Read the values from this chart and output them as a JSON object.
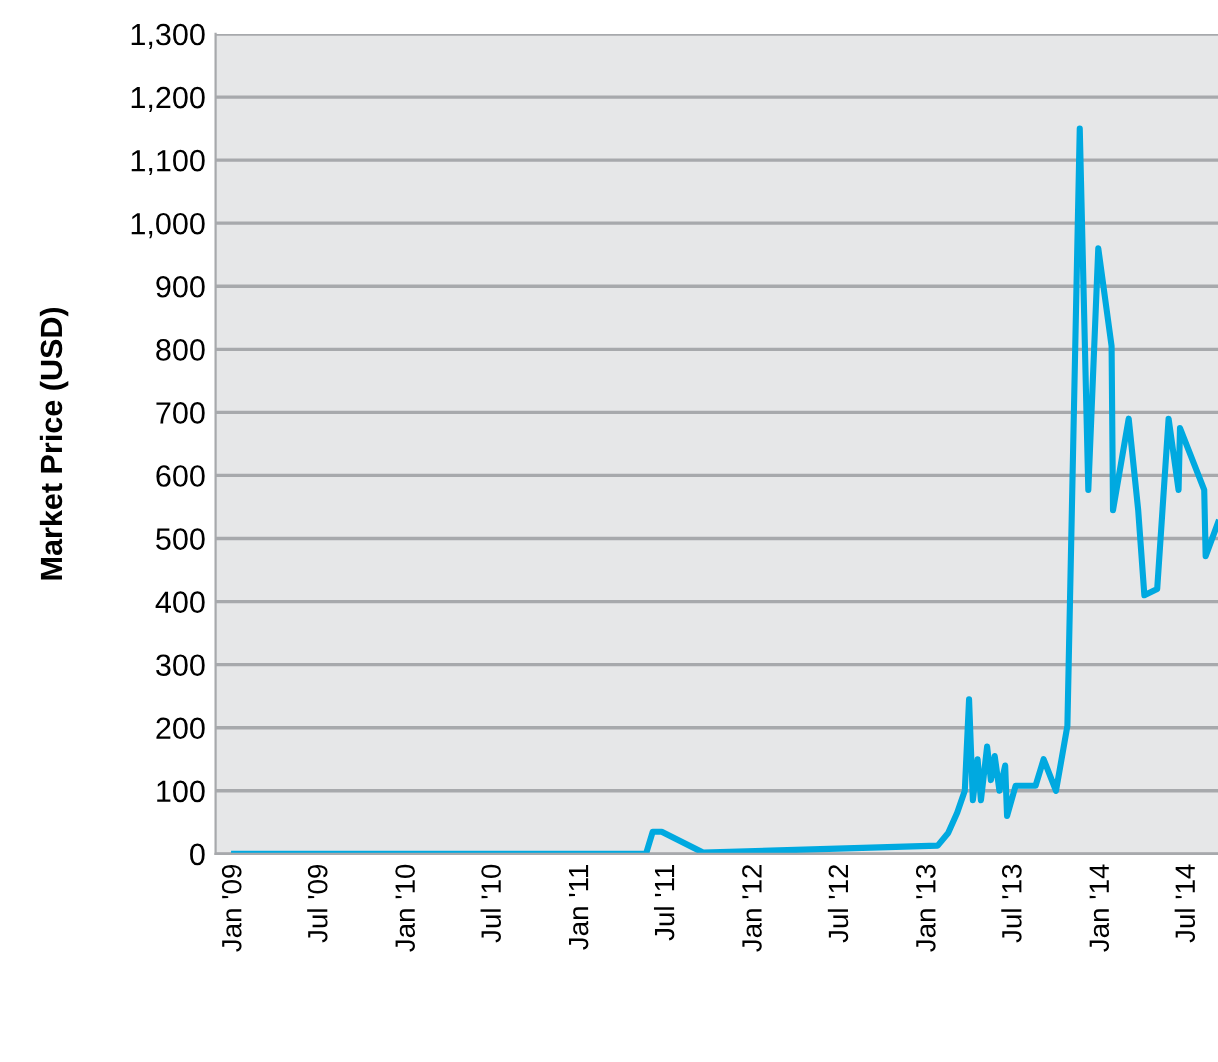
{
  "chart_data": {
    "type": "line",
    "ylabel": "Market Price (USD)",
    "x": [
      "2009-01-01",
      "2011-05-18",
      "2011-06-01",
      "2011-06-20",
      "2011-09-15",
      "2013-01-21",
      "2013-02-12",
      "2013-03-03",
      "2013-03-19",
      "2013-03-28",
      "2013-04-05",
      "2013-04-15",
      "2013-04-22",
      "2013-05-05",
      "2013-05-13",
      "2013-05-21",
      "2013-05-31",
      "2013-06-12",
      "2013-06-16",
      "2013-07-04",
      "2013-08-15",
      "2013-09-01",
      "2013-09-27",
      "2013-10-21",
      "2013-11-16",
      "2013-12-04",
      "2013-12-25",
      "2014-01-22",
      "2014-01-25",
      "2014-02-27",
      "2014-03-19",
      "2014-04-01",
      "2014-04-28",
      "2014-05-22",
      "2014-06-12",
      "2014-06-15",
      "2014-08-05",
      "2014-08-08",
      "2014-09-03"
    ],
    "series": [
      {
        "color": "#00a9e0",
        "values": [
          0,
          0,
          35,
          35,
          2,
          13,
          33,
          65,
          100,
          245,
          85,
          150,
          85,
          170,
          117,
          155,
          100,
          140,
          60,
          108,
          108,
          150,
          100,
          203,
          1150,
          577,
          960,
          805,
          545,
          690,
          545,
          410,
          420,
          690,
          577,
          675,
          577,
          472,
          525
        ]
      }
    ],
    "xlim": [
      "2008-11-23",
      "2014-09-03"
    ],
    "xticks": [
      {
        "value": "2009-01-01",
        "label": "Jan '09"
      },
      {
        "value": "2009-07-01",
        "label": "Jul '09"
      },
      {
        "value": "2010-01-01",
        "label": "Jan '10"
      },
      {
        "value": "2010-07-01",
        "label": "Jul '10"
      },
      {
        "value": "2011-01-01",
        "label": "Jan '11"
      },
      {
        "value": "2011-07-01",
        "label": "Jul '11"
      },
      {
        "value": "2012-01-01",
        "label": "Jan '12"
      },
      {
        "value": "2012-07-01",
        "label": "Jul '12"
      },
      {
        "value": "2013-01-01",
        "label": "Jan '13"
      },
      {
        "value": "2013-07-01",
        "label": "Jul '13"
      },
      {
        "value": "2014-01-01",
        "label": "Jan '14"
      },
      {
        "value": "2014-07-01",
        "label": "Jul '14"
      }
    ],
    "ylim": [
      0,
      1300
    ],
    "yticks": [
      0,
      100,
      200,
      300,
      400,
      500,
      600,
      700,
      800,
      900,
      {
        "value": 1000,
        "label": "1,000"
      },
      {
        "value": 1100,
        "label": "1,100"
      },
      {
        "value": 1200,
        "label": "1,200"
      },
      {
        "value": 1300,
        "label": "1,300"
      }
    ],
    "grid": "y",
    "marker": "none",
    "line_style": "solid"
  }
}
